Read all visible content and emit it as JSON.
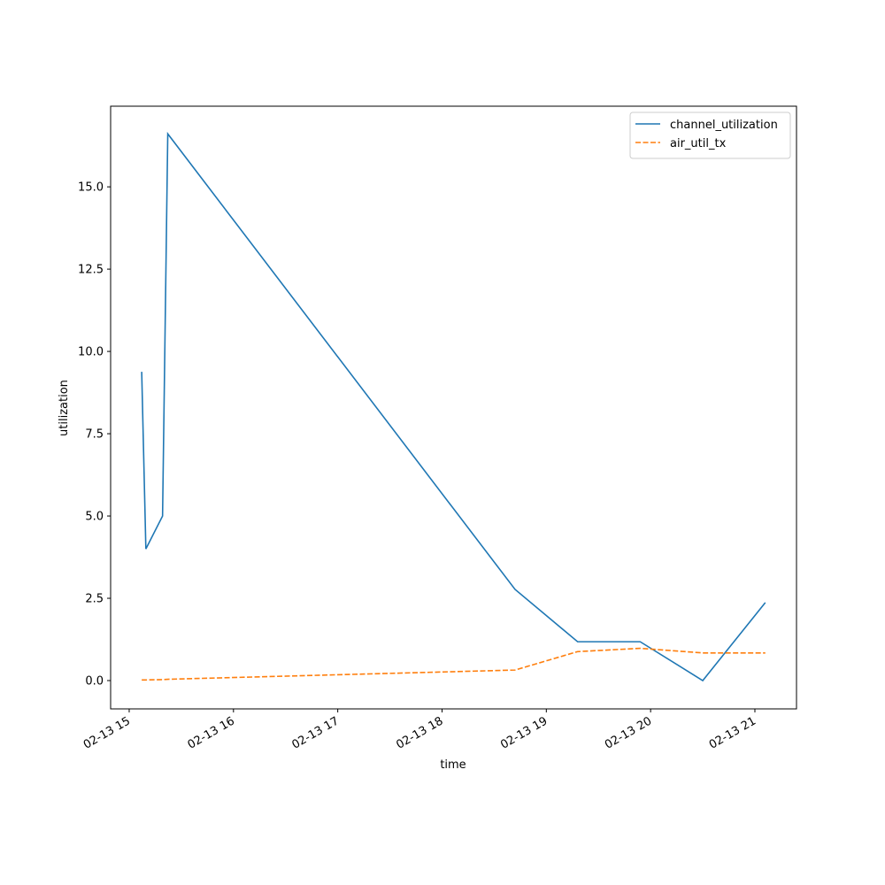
{
  "chart_data": {
    "type": "line",
    "xlabel": "time",
    "ylabel": "utilization",
    "x": [
      15.12,
      15.16,
      15.32,
      15.37,
      18.7,
      19.3,
      19.9,
      20.5,
      21.1
    ],
    "series": [
      {
        "name": "channel_utilization",
        "color": "#1f77b4",
        "dash": "solid",
        "values": [
          9.38,
          4.0,
          5.0,
          16.61,
          2.77,
          1.18,
          1.18,
          0.0,
          2.37
        ]
      },
      {
        "name": "air_util_tx",
        "color": "#ff7f0e",
        "dash": "dashed",
        "values": [
          0.02,
          0.02,
          0.03,
          0.04,
          0.32,
          0.88,
          0.98,
          0.84,
          0.84
        ]
      }
    ],
    "xlim": [
      14.822,
      21.399
    ],
    "xticks": [
      {
        "value": 15,
        "label": "02-13 15"
      },
      {
        "value": 16,
        "label": "02-13 16"
      },
      {
        "value": 17,
        "label": "02-13 17"
      },
      {
        "value": 18,
        "label": "02-13 18"
      },
      {
        "value": 19,
        "label": "02-13 19"
      },
      {
        "value": 20,
        "label": "02-13 20"
      },
      {
        "value": 21,
        "label": "02-13 21"
      }
    ],
    "ylim": [
      -0.86,
      17.45
    ],
    "yticks": [
      {
        "value": 0,
        "label": "0.0"
      },
      {
        "value": 2.5,
        "label": "2.5"
      },
      {
        "value": 5,
        "label": "5.0"
      },
      {
        "value": 7.5,
        "label": "7.5"
      },
      {
        "value": 10,
        "label": "10.0"
      },
      {
        "value": 12.5,
        "label": "12.5"
      },
      {
        "value": 15,
        "label": "15.0"
      }
    ],
    "legend": "upper right",
    "grid": false
  }
}
